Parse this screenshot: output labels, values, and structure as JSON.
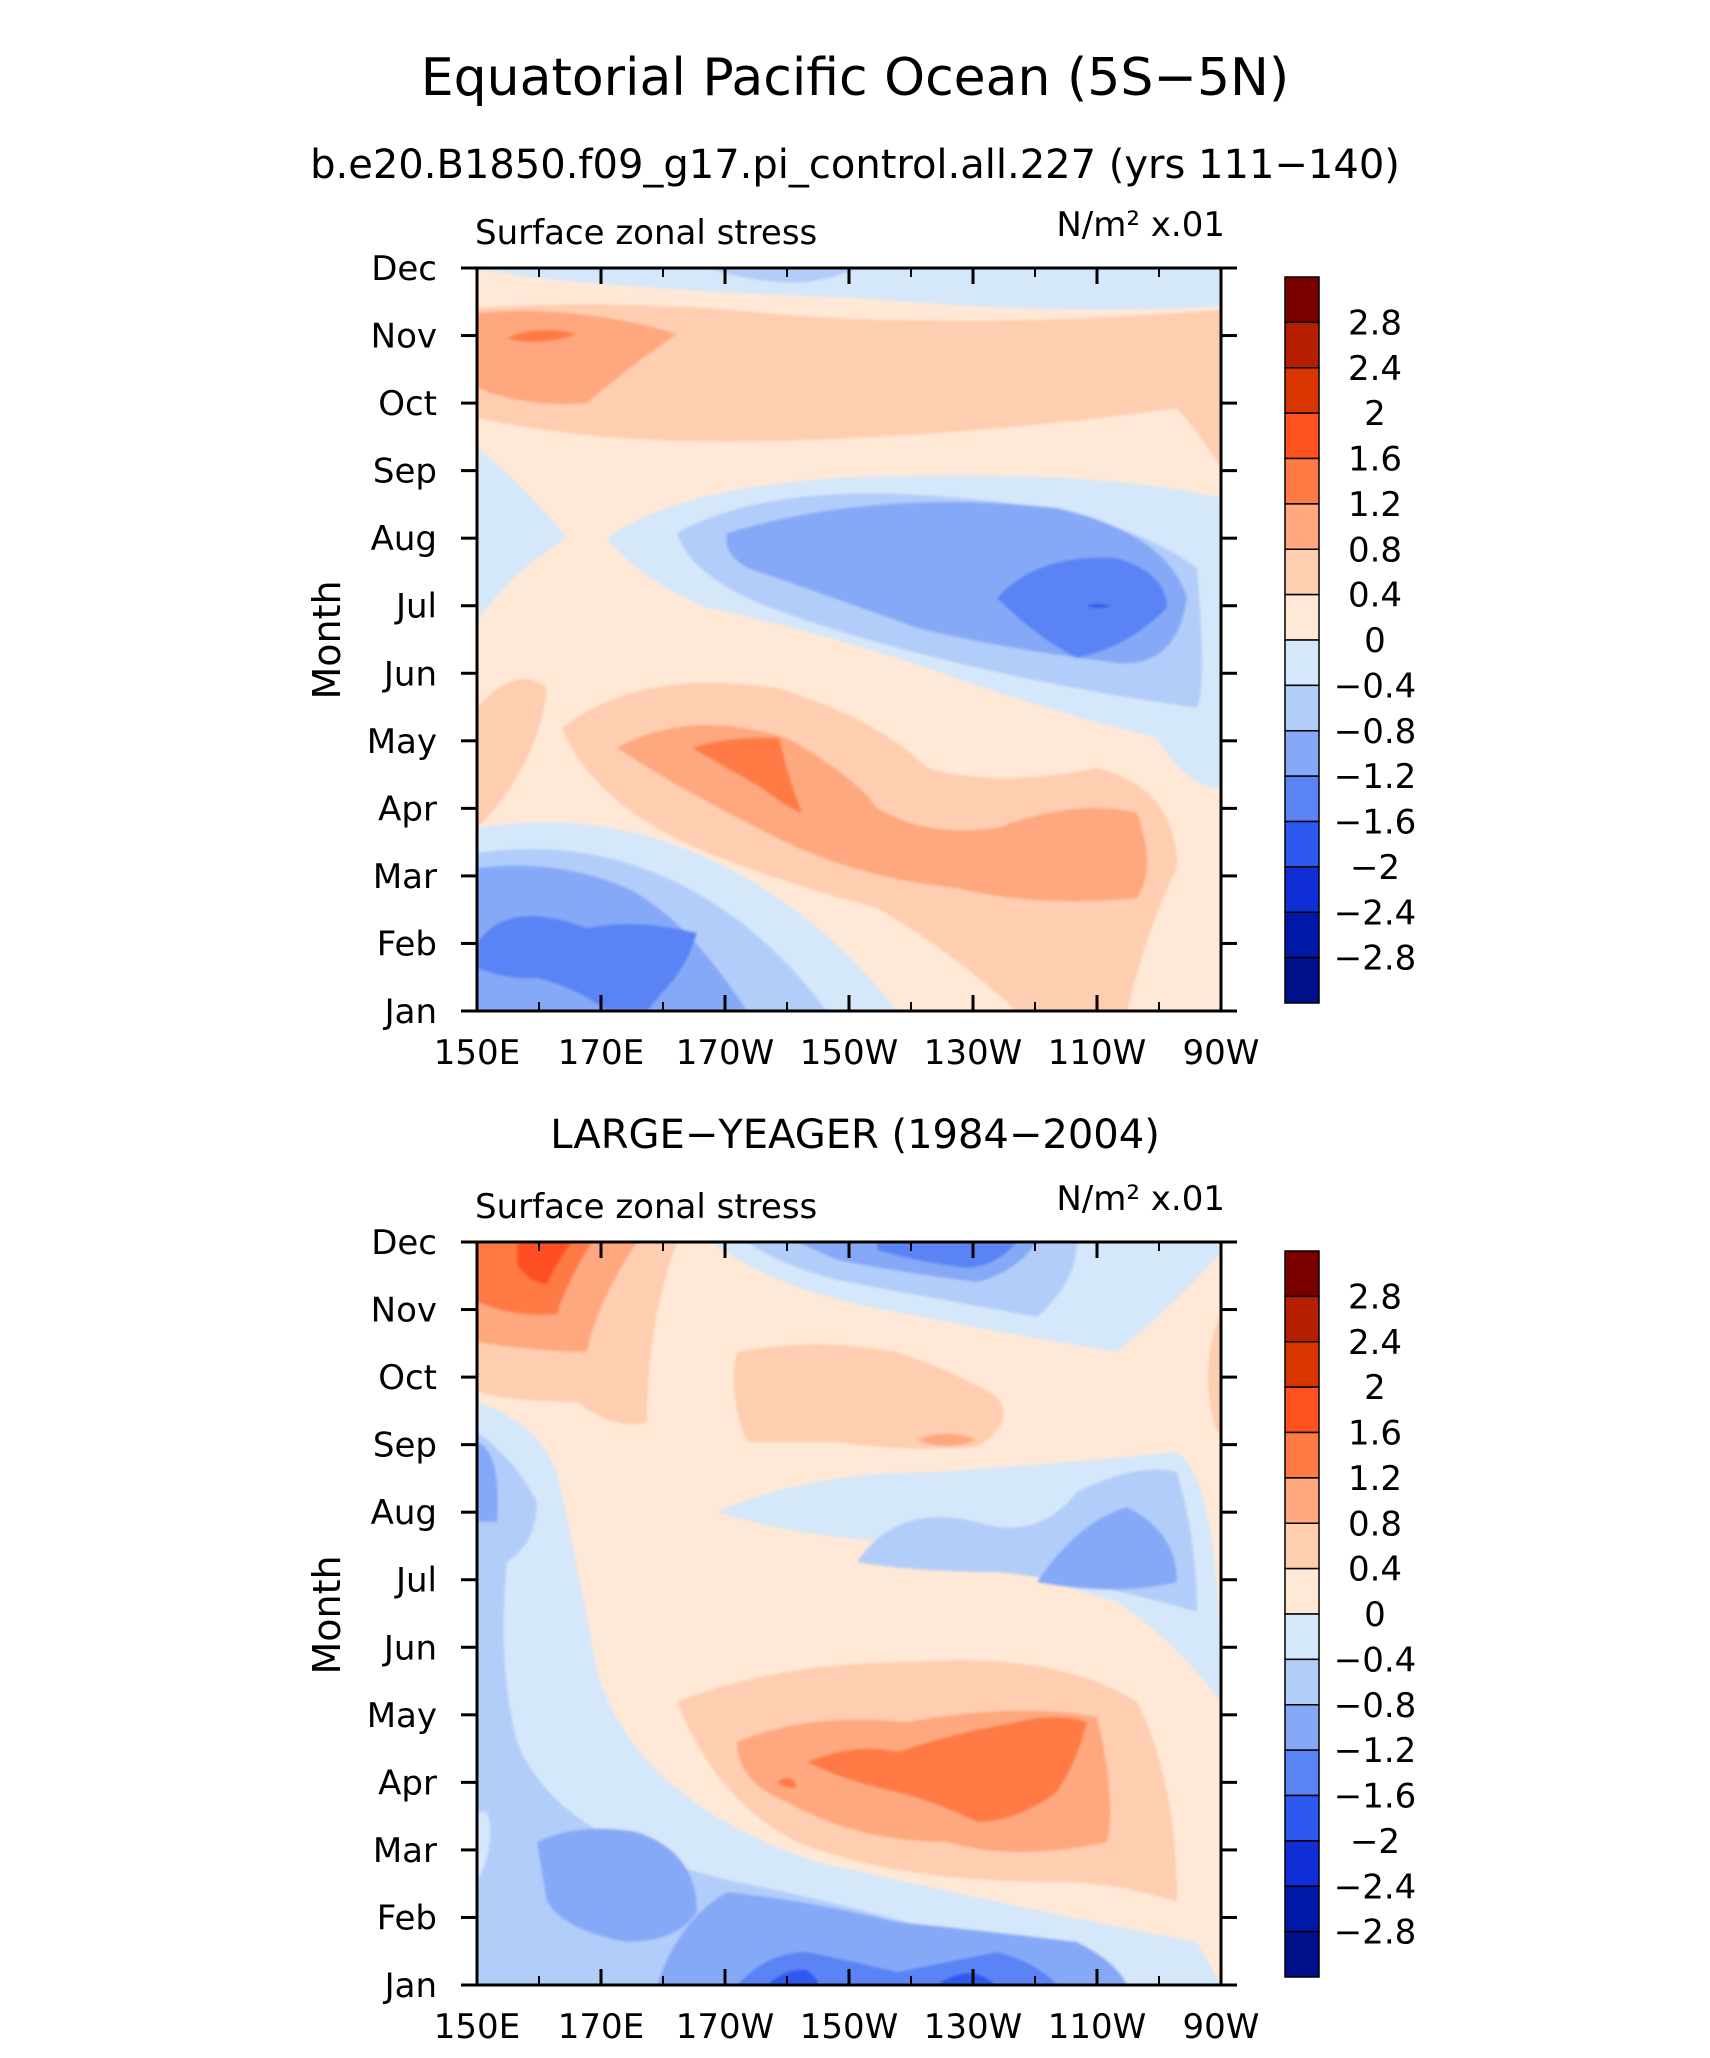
{
  "title": "Equatorial Pacific Ocean (5S−5N)",
  "colorbar": {
    "labels": [
      "2.8",
      "2.4",
      "2",
      "1.6",
      "1.2",
      "0.8",
      "0.4",
      "0",
      "−0.4",
      "−0.8",
      "−1.2",
      "−1.6",
      "−2",
      "−2.4",
      "−2.8"
    ],
    "colors": [
      "#7a0000",
      "#b51f00",
      "#d93500",
      "#ff5020",
      "#ff7a45",
      "#ffa77e",
      "#ffcdb0",
      "#ffe8d6",
      "#d5e7fa",
      "#b3cdfa",
      "#86a9f7",
      "#5a84f5",
      "#2e59f0",
      "#0f2ed6",
      "#0018a8",
      "#00108a"
    ]
  },
  "chart_data": [
    {
      "type": "heatmap",
      "subtitle": "b.e20.B1850.f09_g17.pi_control.all.227 (yrs 111−140)",
      "left_label": "Surface zonal stress",
      "right_label": "N/m² x.01",
      "ylabel": "Month",
      "x_tick_labels": [
        "150E",
        "170E",
        "170W",
        "150W",
        "130W",
        "110W",
        "90W"
      ],
      "y_tick_labels": [
        "Jan",
        "Feb",
        "Mar",
        "Apr",
        "May",
        "Jun",
        "Jul",
        "Aug",
        "Sep",
        "Oct",
        "Nov",
        "Dec"
      ],
      "x_range": [
        "150E",
        "90W"
      ],
      "y_range": [
        "Jan",
        "Dec"
      ],
      "levels": [
        -2.8,
        -2.4,
        -2,
        -1.6,
        -1.2,
        -0.8,
        -0.4,
        0,
        0.4,
        0.8,
        1.2,
        1.6,
        2,
        2.4,
        2.8
      ],
      "features": [
        {
          "month": "Nov",
          "lon": "160E",
          "value": 1.4
        },
        {
          "month": "Jul",
          "lon": "110W",
          "value": -1.9
        },
        {
          "month": "May",
          "lon": "160W",
          "value": 1.3
        },
        {
          "month": "Feb",
          "lon": "160E",
          "value": -1.4
        },
        {
          "month": "Mar",
          "lon": "120W",
          "value": 0.9
        }
      ]
    },
    {
      "type": "heatmap",
      "subtitle": "LARGE−YEAGER (1984−2004)",
      "left_label": "Surface zonal stress",
      "right_label": "N/m² x.01",
      "ylabel": "Month",
      "x_tick_labels": [
        "150E",
        "170E",
        "170W",
        "150W",
        "130W",
        "110W",
        "90W"
      ],
      "y_tick_labels": [
        "Jan",
        "Feb",
        "Mar",
        "Apr",
        "May",
        "Jun",
        "Jul",
        "Aug",
        "Sep",
        "Oct",
        "Nov",
        "Dec"
      ],
      "x_range": [
        "150E",
        "90W"
      ],
      "y_range": [
        "Jan",
        "Dec"
      ],
      "levels": [
        -2.8,
        -2.4,
        -2,
        -1.6,
        -1.2,
        -0.8,
        -0.4,
        0,
        0.4,
        0.8,
        1.2,
        1.6,
        2,
        2.4,
        2.8
      ],
      "features": [
        {
          "month": "Dec",
          "lon": "160E",
          "value": 1.7
        },
        {
          "month": "Apr",
          "lon": "125W",
          "value": 1.3
        },
        {
          "month": "Jan",
          "lon": "150W",
          "value": -1.6
        },
        {
          "month": "Jul",
          "lon": "110W",
          "value": -0.9
        },
        {
          "month": "Sep",
          "lon": "135W",
          "value": 0.9
        }
      ]
    }
  ]
}
